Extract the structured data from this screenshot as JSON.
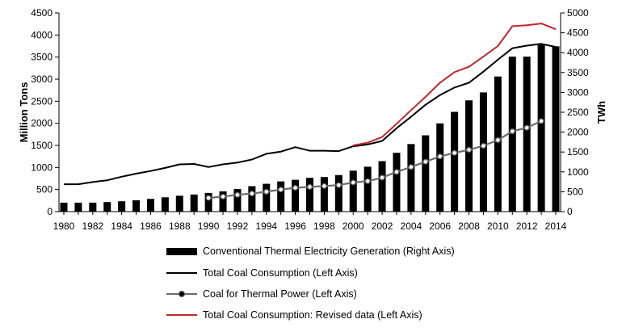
{
  "chart_data": {
    "type": "bar",
    "x": [
      1980,
      1981,
      1982,
      1983,
      1984,
      1985,
      1986,
      1987,
      1988,
      1989,
      1990,
      1991,
      1992,
      1993,
      1994,
      1995,
      1996,
      1997,
      1998,
      1999,
      2000,
      2001,
      2002,
      2003,
      2004,
      2005,
      2006,
      2007,
      2008,
      2009,
      2010,
      2011,
      2012,
      2013,
      2014
    ],
    "x_tick_labels": [
      "1980",
      "1982",
      "1984",
      "1986",
      "1988",
      "1990",
      "1992",
      "1994",
      "1996",
      "1998",
      "2000",
      "2002",
      "2004",
      "2006",
      "2008",
      "2010",
      "2012",
      "2014"
    ],
    "ylabel": "Million Tons",
    "y2label": "TWh",
    "ylim": [
      0,
      4500
    ],
    "y2lim": [
      0,
      5000
    ],
    "y_ticks": [
      "0",
      "500",
      "1000",
      "1500",
      "2000",
      "2500",
      "3000",
      "3500",
      "4000",
      "4500"
    ],
    "y2_ticks": [
      "0",
      "500",
      "1000",
      "1500",
      "2000",
      "2500",
      "3000",
      "3500",
      "4000",
      "4500",
      "5000"
    ],
    "grid": false,
    "legend_position": "bottom",
    "series": [
      {
        "name": "Conventional Thermal Electricity Generation (Right Axis)",
        "kind": "bar",
        "axis": "right",
        "color": "#000000",
        "values": [
          225,
          225,
          225,
          240,
          260,
          285,
          320,
          360,
          400,
          430,
          470,
          510,
          570,
          640,
          700,
          760,
          800,
          850,
          870,
          920,
          1030,
          1130,
          1270,
          1480,
          1700,
          1920,
          2220,
          2510,
          2800,
          3000,
          3400,
          3900,
          3900,
          4200,
          4160
        ]
      },
      {
        "name": "Total Coal Consumption (Left Axis)",
        "kind": "line",
        "axis": "left",
        "color": "#000000",
        "values": [
          620,
          620,
          670,
          710,
          790,
          860,
          920,
          990,
          1070,
          1080,
          1010,
          1070,
          1110,
          1180,
          1310,
          1360,
          1460,
          1380,
          1380,
          1370,
          1480,
          1520,
          1600,
          1890,
          2150,
          2420,
          2640,
          2810,
          2920,
          3170,
          3440,
          3700,
          3760,
          3800,
          3730
        ]
      },
      {
        "name": "Coal for Thermal Power (Left Axis)",
        "kind": "line-marker",
        "axis": "left",
        "color": "#6a6a6a",
        "values": [
          null,
          null,
          null,
          null,
          null,
          null,
          null,
          null,
          null,
          null,
          310,
          340,
          380,
          410,
          450,
          500,
          540,
          560,
          580,
          600,
          660,
          690,
          770,
          900,
          1010,
          1130,
          1250,
          1330,
          1400,
          1490,
          1620,
          1820,
          1900,
          2050,
          null
        ]
      },
      {
        "name": "Total Coal Consumption: Revised data (Left Axis)",
        "kind": "line",
        "axis": "left",
        "color": "#c0272d",
        "values": [
          null,
          null,
          null,
          null,
          null,
          null,
          null,
          null,
          null,
          null,
          null,
          null,
          null,
          null,
          null,
          null,
          null,
          null,
          null,
          null,
          1500,
          1560,
          1690,
          1990,
          2300,
          2600,
          2920,
          3160,
          3280,
          3510,
          3750,
          4200,
          4220,
          4260,
          4130
        ]
      }
    ]
  }
}
